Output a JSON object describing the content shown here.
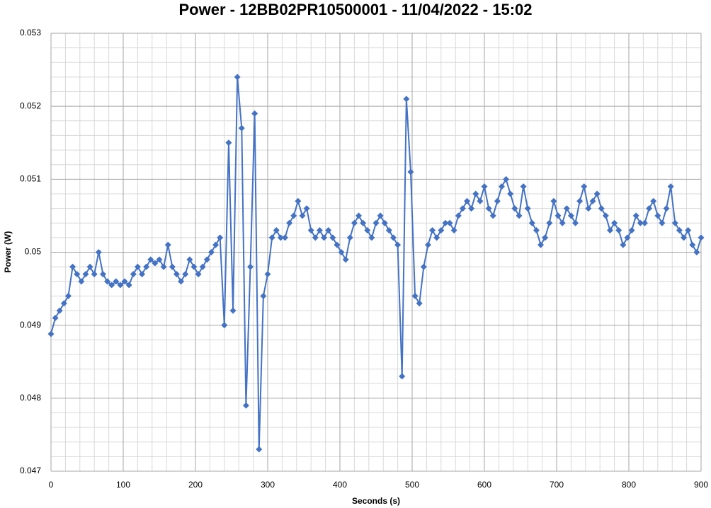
{
  "chart_data": {
    "type": "line",
    "title": "Power - 12BB02PR10500001 - 11/04/2022 - 15:02",
    "x_label": "Seconds (s)",
    "y_label": "Power (W)",
    "x": [
      0,
      6,
      12,
      18,
      24,
      30,
      36,
      42,
      48,
      54,
      60,
      66,
      72,
      78,
      84,
      90,
      96,
      102,
      108,
      114,
      120,
      126,
      132,
      138,
      144,
      150,
      156,
      162,
      168,
      174,
      180,
      186,
      192,
      198,
      204,
      210,
      216,
      222,
      228,
      234,
      240,
      246,
      252,
      258,
      264,
      270,
      276,
      282,
      288,
      294,
      300,
      306,
      312,
      318,
      324,
      330,
      336,
      342,
      348,
      354,
      360,
      366,
      372,
      378,
      384,
      390,
      396,
      402,
      408,
      414,
      420,
      426,
      432,
      438,
      444,
      450,
      456,
      462,
      468,
      474,
      480,
      486,
      492,
      498,
      504,
      510,
      516,
      522,
      528,
      534,
      540,
      546,
      552,
      558,
      564,
      570,
      576,
      582,
      588,
      594,
      600,
      606,
      612,
      618,
      624,
      630,
      636,
      642,
      648,
      654,
      660,
      666,
      672,
      678,
      684,
      690,
      696,
      702,
      708,
      714,
      720,
      726,
      732,
      738,
      744,
      750,
      756,
      762,
      768,
      774,
      780,
      786,
      792,
      798,
      804,
      810,
      816,
      822,
      828,
      834,
      840,
      846,
      852,
      858,
      864,
      870,
      876,
      882,
      888,
      894,
      900
    ],
    "series": [
      {
        "name": "Power (W)",
        "color": "#4472c4",
        "values": [
          0.04888,
          0.0491,
          0.0492,
          0.0493,
          0.0494,
          0.0498,
          0.0497,
          0.0496,
          0.0497,
          0.0498,
          0.0497,
          0.05,
          0.0497,
          0.0496,
          0.04955,
          0.0496,
          0.04955,
          0.0496,
          0.04955,
          0.0497,
          0.0498,
          0.0497,
          0.0498,
          0.0499,
          0.04985,
          0.0499,
          0.0498,
          0.0501,
          0.0498,
          0.0497,
          0.0496,
          0.0497,
          0.0499,
          0.0498,
          0.0497,
          0.0498,
          0.0499,
          0.05,
          0.0501,
          0.0502,
          0.049,
          0.0515,
          0.0492,
          0.0524,
          0.0517,
          0.0479,
          0.0498,
          0.0519,
          0.0473,
          0.0494,
          0.0497,
          0.0502,
          0.0503,
          0.0502,
          0.0502,
          0.0504,
          0.0505,
          0.0507,
          0.0505,
          0.0506,
          0.0503,
          0.0502,
          0.0503,
          0.0502,
          0.0503,
          0.0502,
          0.0501,
          0.05,
          0.0499,
          0.0502,
          0.0504,
          0.0505,
          0.0504,
          0.0503,
          0.0502,
          0.0504,
          0.0505,
          0.0504,
          0.0503,
          0.0502,
          0.0501,
          0.0483,
          0.0521,
          0.0511,
          0.0494,
          0.0493,
          0.0498,
          0.0501,
          0.0503,
          0.0502,
          0.0503,
          0.0504,
          0.0504,
          0.0503,
          0.0505,
          0.0506,
          0.0507,
          0.0506,
          0.0508,
          0.0507,
          0.0509,
          0.0506,
          0.0505,
          0.0507,
          0.0509,
          0.051,
          0.0508,
          0.0506,
          0.0505,
          0.0509,
          0.0506,
          0.0504,
          0.0503,
          0.0501,
          0.0502,
          0.0504,
          0.0507,
          0.0505,
          0.0504,
          0.0506,
          0.0505,
          0.0504,
          0.0507,
          0.0509,
          0.0506,
          0.0507,
          0.0508,
          0.0506,
          0.0505,
          0.0503,
          0.0504,
          0.0503,
          0.0501,
          0.0502,
          0.0503,
          0.0505,
          0.0504,
          0.0504,
          0.0506,
          0.0507,
          0.0505,
          0.0504,
          0.0506,
          0.0509,
          0.0504,
          0.0503,
          0.0502,
          0.0503,
          0.0501,
          0.05,
          0.0502
        ]
      }
    ],
    "xlim": [
      0,
      900
    ],
    "xticks": [
      0,
      100,
      200,
      300,
      400,
      500,
      600,
      700,
      800,
      900
    ],
    "ylim": [
      0.047,
      0.053
    ],
    "yticks": [
      0.047,
      0.048,
      0.049,
      0.05,
      0.051,
      0.052,
      0.053
    ],
    "grid": true
  }
}
